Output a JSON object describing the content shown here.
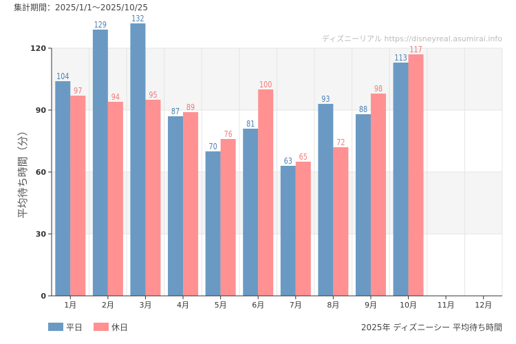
{
  "header": {
    "period": "集計期間：2025/1/1～2025/10/25",
    "watermark": "ディズニーリアル https://disneyreal.asumirai.info"
  },
  "footer": {
    "caption": "2025年 ディズニーシー 平均待ち時間"
  },
  "colors": {
    "weekday": "#6a9ac4",
    "holiday": "#ff9192",
    "weekday_label": "#4a7fb5",
    "holiday_label": "#f07a7c",
    "band": "#f4f5f4",
    "grid": "#e4e4e4"
  },
  "chart_data": {
    "type": "bar",
    "ylabel": "平均待ち時間（分）",
    "ylim": [
      0,
      120
    ],
    "yticks": [
      0,
      30,
      60,
      90,
      120
    ],
    "grid": true,
    "legend": "bottom-left",
    "categories": [
      "1月",
      "2月",
      "3月",
      "4月",
      "5月",
      "6月",
      "7月",
      "8月",
      "9月",
      "10月",
      "11月",
      "12月"
    ],
    "series": [
      {
        "name": "平日",
        "values": [
          104,
          129,
          132,
          87,
          70,
          81,
          63,
          93,
          88,
          113,
          null,
          null
        ]
      },
      {
        "name": "休日",
        "values": [
          97,
          94,
          95,
          89,
          76,
          100,
          65,
          72,
          98,
          117,
          null,
          null
        ]
      }
    ]
  }
}
